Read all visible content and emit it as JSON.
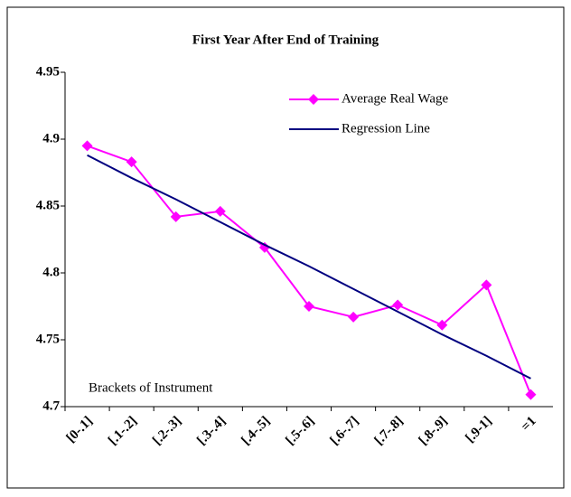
{
  "chart_data": {
    "type": "line",
    "title": "First Year After End of Training",
    "x_label": "Brackets of Instrument",
    "categories": [
      "[0-.1]",
      "[.1-.2]",
      "[.2-.3]",
      "[.3-.4]",
      "[.4-.5]",
      "[.5-.6]",
      "[.6-.7]",
      "[.7-.8]",
      "[.8-.9]",
      "[.9-1]",
      "=1"
    ],
    "series": [
      {
        "name": "Average Real Wage",
        "color": "#ff00ff",
        "marker": "diamond",
        "values": [
          4.895,
          4.883,
          4.842,
          4.846,
          4.819,
          4.775,
          4.767,
          4.776,
          4.761,
          4.791,
          4.709
        ]
      },
      {
        "name": "Regression Line",
        "color": "#000080",
        "values": [
          4.888,
          4.871,
          4.855,
          4.838,
          4.821,
          4.805,
          4.788,
          4.771,
          4.754,
          4.738,
          4.721
        ]
      }
    ],
    "ylim": [
      4.7,
      4.95
    ],
    "yticks": [
      4.7,
      4.75,
      4.8,
      4.85,
      4.9,
      4.95
    ],
    "grid": false,
    "legend": "top-right"
  }
}
